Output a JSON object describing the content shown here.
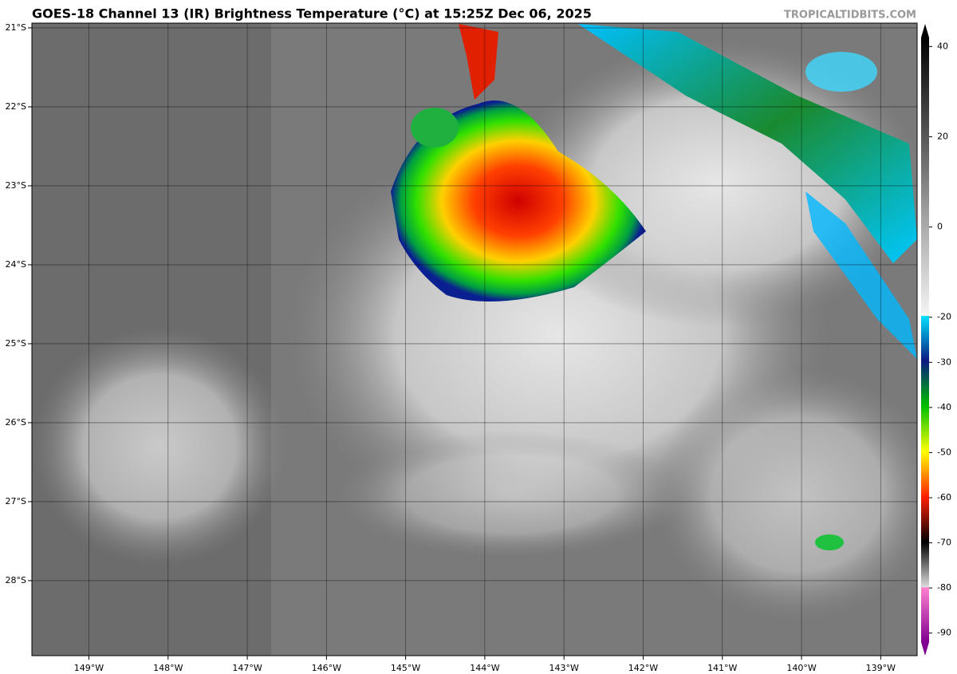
{
  "map": {
    "title": "GOES-18 Channel 13 (IR) Brightness Temperature (°C) at 15:25Z Dec 06, 2025",
    "source": "TROPICALTIDBITS.COM",
    "xlim": [
      -149.72,
      -138.54
    ],
    "ylim": [
      -28.95,
      -20.94
    ],
    "xticks": [
      {
        "value": -149,
        "label": "149°W"
      },
      {
        "value": -148,
        "label": "148°W"
      },
      {
        "value": -147,
        "label": "147°W"
      },
      {
        "value": -146,
        "label": "146°W"
      },
      {
        "value": -145,
        "label": "145°W"
      },
      {
        "value": -144,
        "label": "144°W"
      },
      {
        "value": -143,
        "label": "143°W"
      },
      {
        "value": -142,
        "label": "142°W"
      },
      {
        "value": -141,
        "label": "141°W"
      },
      {
        "value": -140,
        "label": "140°W"
      },
      {
        "value": -139,
        "label": "139°W"
      }
    ],
    "yticks": [
      {
        "value": -21,
        "label": "21°S"
      },
      {
        "value": -22,
        "label": "22°S"
      },
      {
        "value": -23,
        "label": "23°S"
      },
      {
        "value": -24,
        "label": "24°S"
      },
      {
        "value": -25,
        "label": "25°S"
      },
      {
        "value": -26,
        "label": "26°S"
      },
      {
        "value": -27,
        "label": "27°S"
      },
      {
        "value": -28,
        "label": "28°S"
      }
    ],
    "colorbar": {
      "range": [
        -92,
        42
      ],
      "ticks": [
        40,
        20,
        0,
        -20,
        -30,
        -40,
        -50,
        -60,
        -70,
        -80,
        -90
      ]
    }
  }
}
